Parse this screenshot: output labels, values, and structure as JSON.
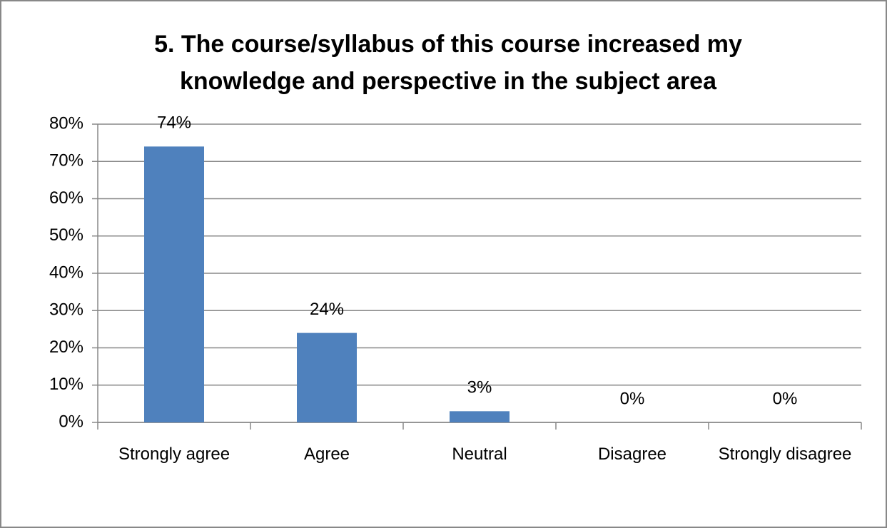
{
  "chart_data": {
    "type": "bar",
    "title": "5. The course/syllabus of this course increased my knowledge and perspective in the subject area",
    "categories": [
      "Strongly agree",
      "Agree",
      "Neutral",
      "Disagree",
      "Strongly disagree"
    ],
    "values": [
      74,
      24,
      3,
      0,
      0
    ],
    "value_labels": [
      "74%",
      "24%",
      "3%",
      "0%",
      "0%"
    ],
    "color": "#4f81bd",
    "ylim": [
      0,
      80
    ],
    "yticks": [
      {
        "value": 0,
        "label": "0%"
      },
      {
        "value": 10,
        "label": "10%"
      },
      {
        "value": 20,
        "label": "20%"
      },
      {
        "value": 30,
        "label": "30%"
      },
      {
        "value": 40,
        "label": "40%"
      },
      {
        "value": 50,
        "label": "50%"
      },
      {
        "value": 60,
        "label": "60%"
      },
      {
        "value": 70,
        "label": "70%"
      },
      {
        "value": 80,
        "label": "80%"
      }
    ],
    "grid": true
  }
}
